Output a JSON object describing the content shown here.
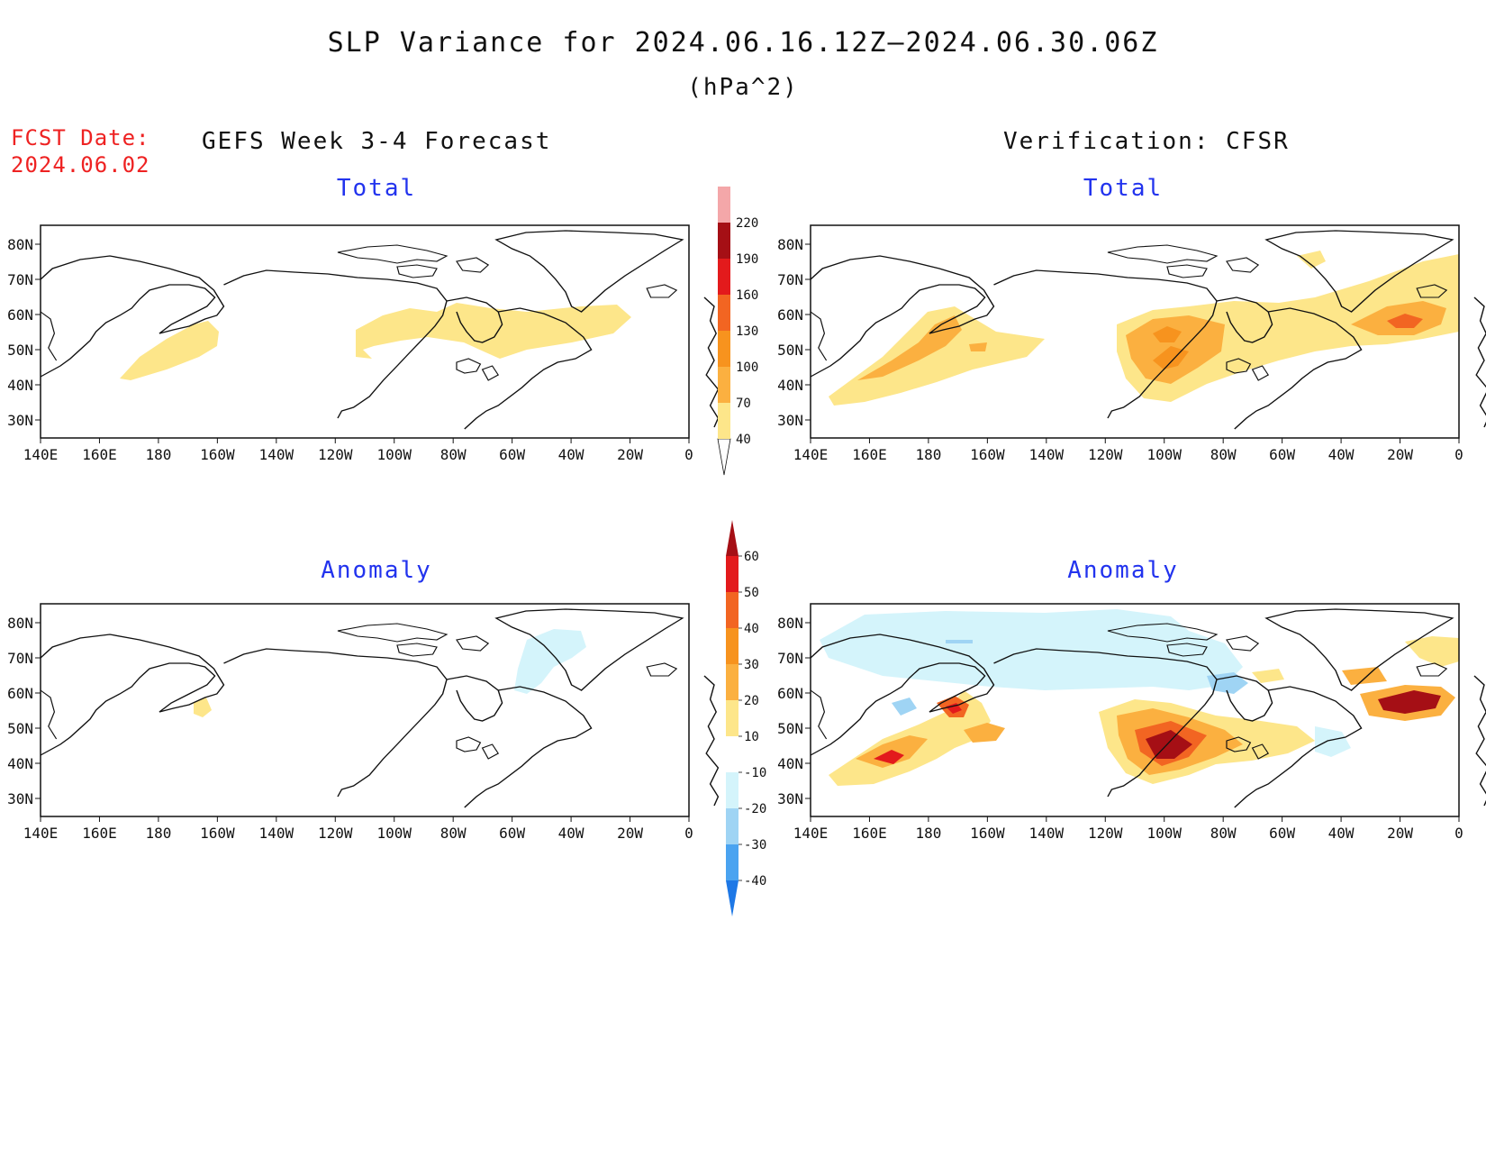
{
  "title": "SLP Variance for 2024.06.16.12Z–2024.06.30.06Z",
  "units": "(hPa^2)",
  "fcst_label": "FCST Date:",
  "fcst_date": "2024.06.02",
  "left_heading": "GEFS Week 3-4 Forecast",
  "right_heading": "Verification: CFSR",
  "panel_titles": {
    "forecast_total": "Total",
    "verification_total": "Total",
    "forecast_anomaly": "Anomaly",
    "verification_anomaly": "Anomaly"
  },
  "lon_labels": [
    "140E",
    "160E",
    "180",
    "160W",
    "140W",
    "120W",
    "100W",
    "80W",
    "60W",
    "40W",
    "20W",
    "0"
  ],
  "lat_labels": [
    "80N",
    "70N",
    "60N",
    "50N",
    "40N",
    "30N"
  ],
  "colorbar_total": {
    "levels": [
      "40",
      "70",
      "100",
      "130",
      "160",
      "190",
      "220"
    ],
    "colors": [
      "#fde68a",
      "#fbb040",
      "#f7931e",
      "#f26522",
      "#e31a1c",
      "#a50f15",
      "#f4a7a9",
      "#fde0e0"
    ]
  },
  "colorbar_anomaly": {
    "levels": [
      "60",
      "50",
      "40",
      "30",
      "20",
      "10",
      "-10",
      "-20",
      "-30",
      "-40"
    ],
    "colors": [
      "#a50f15",
      "#e31a1c",
      "#f26522",
      "#f7931e",
      "#fbb040",
      "#fde68a",
      "#ffffff",
      "#d4f4fb",
      "#9fd4f4",
      "#4aa3f0",
      "#1e78e6"
    ]
  }
}
